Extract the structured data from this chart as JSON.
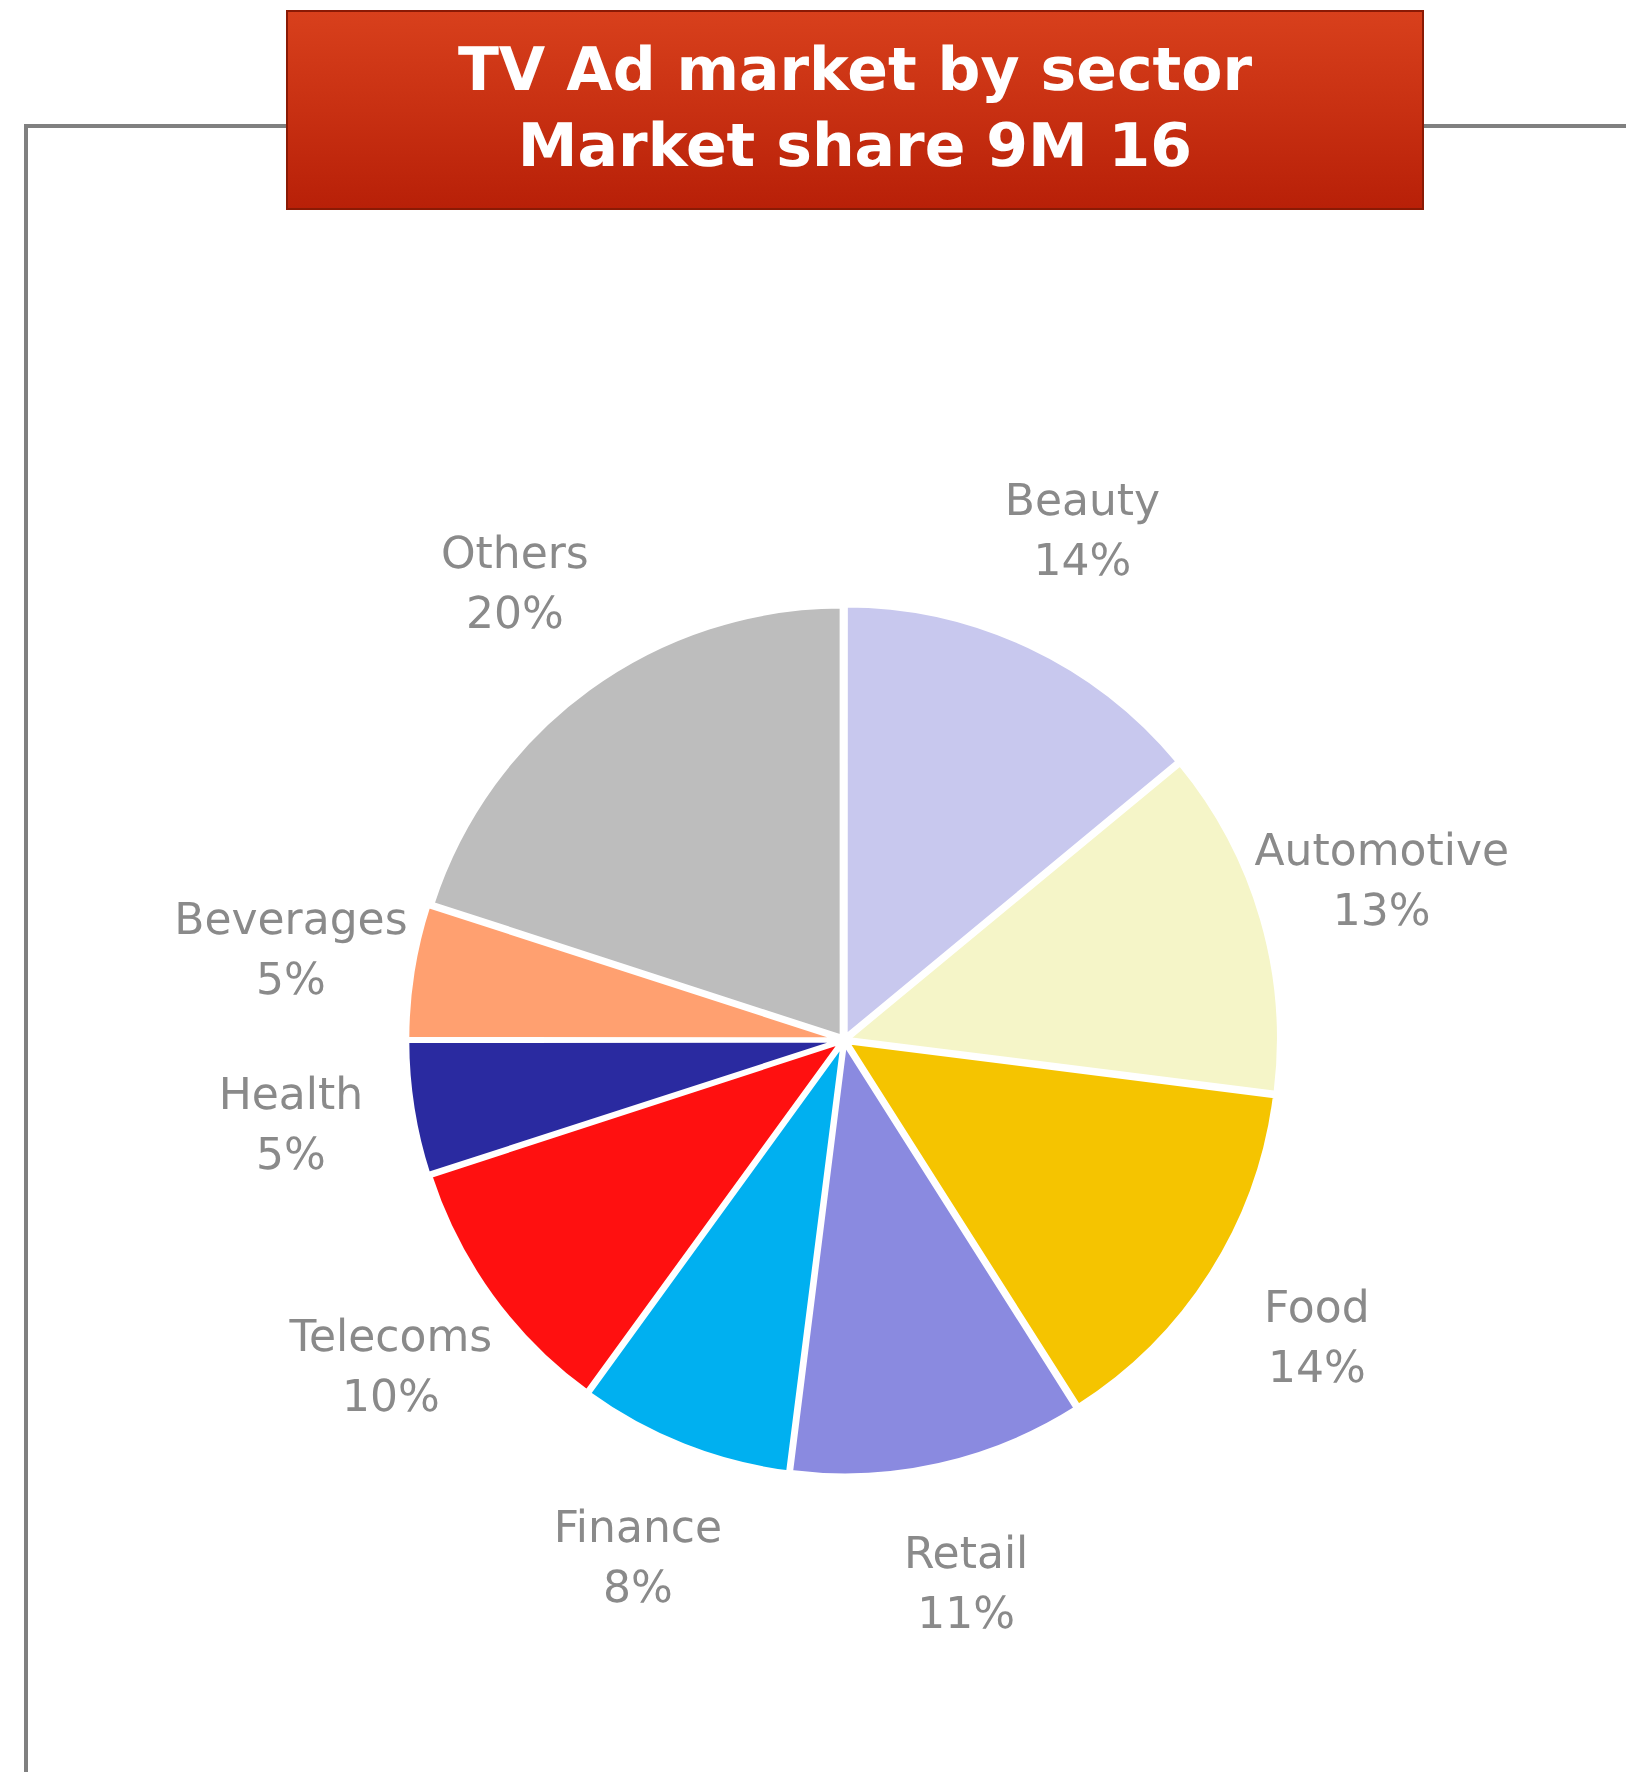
{
  "chart_data": {
    "type": "pie",
    "title": "TV Ad market by sector",
    "subtitle": "Market share 9M 16",
    "categories": [
      "Beauty",
      "Automotive",
      "Food",
      "Retail",
      "Finance",
      "Telecoms",
      "Health",
      "Beverages",
      "Others"
    ],
    "values": [
      14,
      13,
      14,
      11,
      8,
      10,
      5,
      5,
      20
    ],
    "colors": [
      "#c8c8ee",
      "#f5f5c8",
      "#f5c400",
      "#8a8ae0",
      "#00b0f0",
      "#ff1010",
      "#2a2aa0",
      "#ffa070",
      "#bdbdbd"
    ],
    "value_labels": [
      "14%",
      "13%",
      "14%",
      "11%",
      "8%",
      "10%",
      "5%",
      "5%",
      "20%"
    ]
  }
}
